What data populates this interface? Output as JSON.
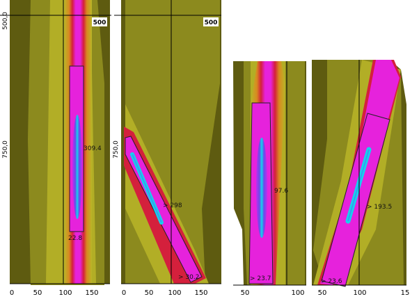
{
  "colors": {
    "background": "#5e5b10",
    "yellow": "#b8b628",
    "orange": "#e06018",
    "red": "#d4203c",
    "magenta": "#e622dc",
    "violet": "#8b3fe8",
    "cyan": "#14d4ee"
  },
  "chart_data": [
    {
      "type": "heatmap",
      "panel": "A",
      "xticks": [
        "0",
        "50",
        "100",
        "150"
      ],
      "yticks": [
        "500,0",
        "750,0"
      ],
      "box_label": "500",
      "annotations": [
        "309.4",
        "22.8"
      ]
    },
    {
      "type": "heatmap",
      "panel": "B",
      "xticks": [
        "0",
        "50",
        "100",
        "150"
      ],
      "yticks": [
        "750,0"
      ],
      "box_label": "500",
      "annotations": [
        "> 298",
        "> 30.2"
      ]
    },
    {
      "type": "heatmap",
      "panel": "C",
      "xticks": [
        "50",
        "100"
      ],
      "yticks": [],
      "annotations": [
        "97.6",
        "> 23.7"
      ]
    },
    {
      "type": "heatmap",
      "panel": "D",
      "xticks": [
        "50",
        "100",
        "15"
      ],
      "yticks": [],
      "annotations": [
        "> 193.5",
        "> 23.6"
      ]
    }
  ]
}
